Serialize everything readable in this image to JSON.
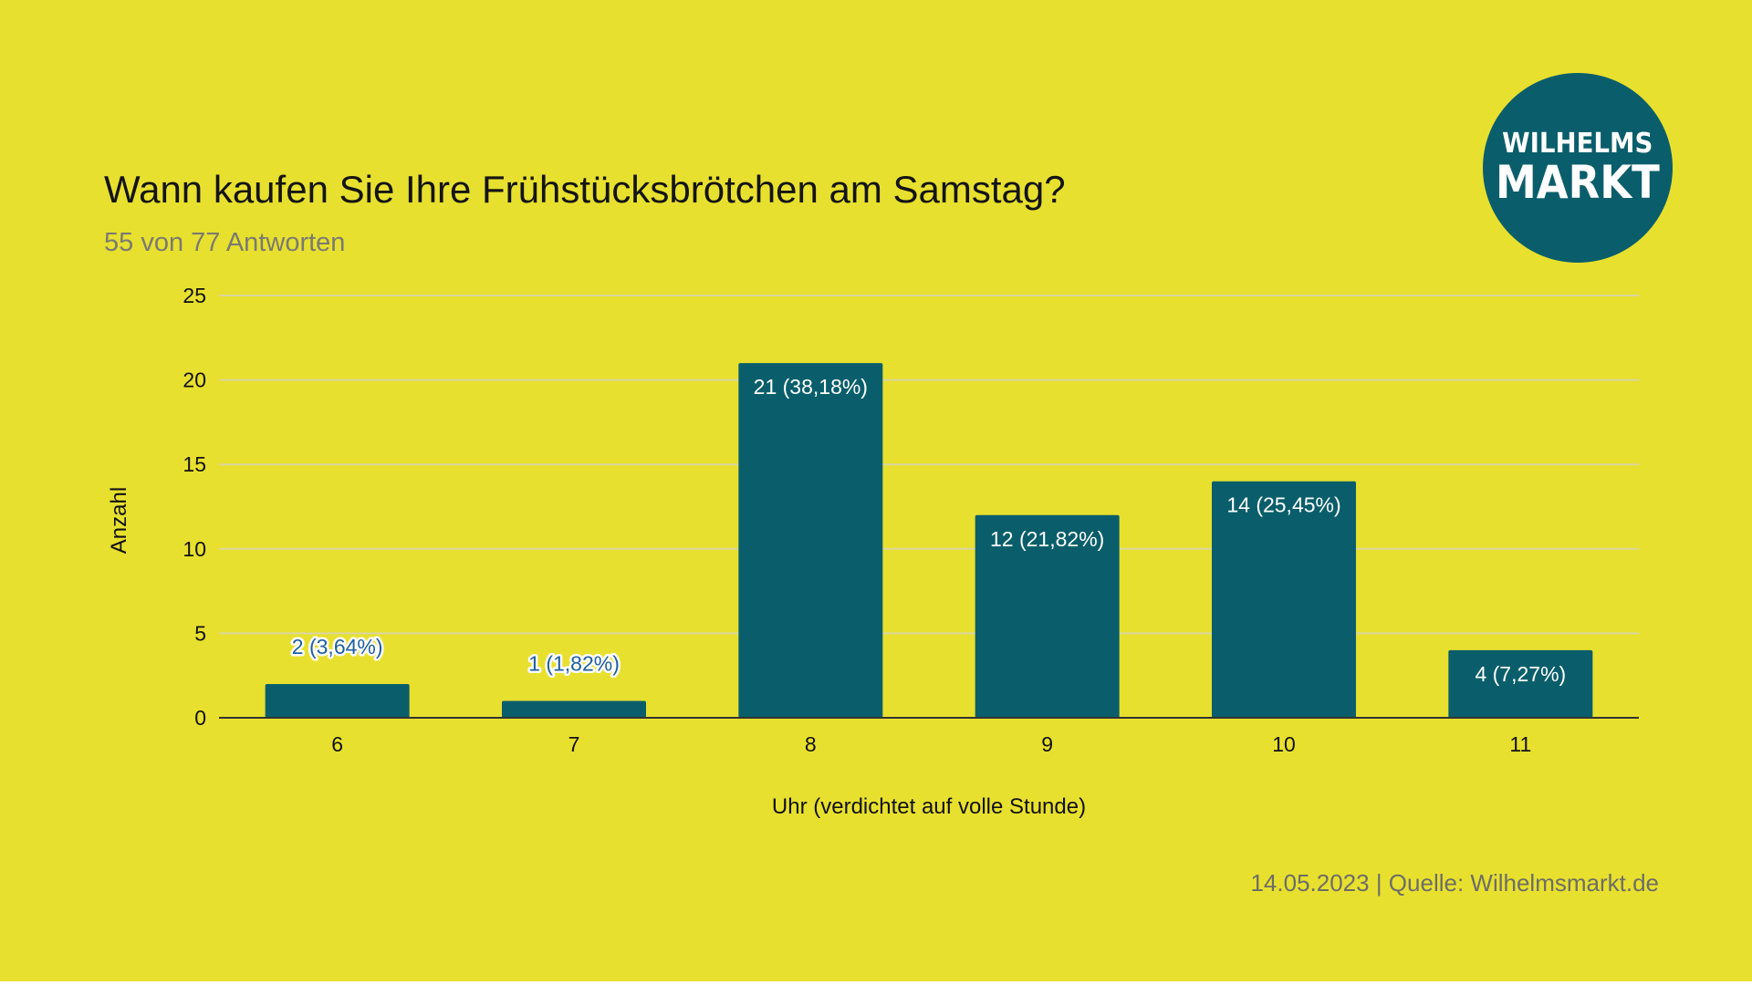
{
  "header": {
    "title": "Wann kaufen Sie Ihre Frühstücksbrötchen am Samstag?",
    "subtitle": "55 von 77 Antworten"
  },
  "logo": {
    "line1": "WILHELMS",
    "line2": "MARKT"
  },
  "footer": {
    "text": "14.05.2023 | Quelle: Wilhelmsmarkt.de"
  },
  "colors": {
    "background": "#e8e02f",
    "bar": "#0a5e6b",
    "label_outside": "#1e5f9e",
    "label_inside": "#ffffff",
    "grid": "#d9d6a0"
  },
  "chart_data": {
    "type": "bar",
    "categories": [
      "6",
      "7",
      "8",
      "9",
      "10",
      "11"
    ],
    "values": [
      2,
      1,
      21,
      12,
      14,
      4
    ],
    "data_labels": [
      "2 (3,64%)",
      "1 (1,82%)",
      "21 (38,18%)",
      "12 (21,82%)",
      "14 (25,45%)",
      "4 (7,27%)"
    ],
    "xlabel": "Uhr (verdichtet auf volle Stunde)",
    "ylabel": "Anzahl",
    "ylim": [
      0,
      25
    ],
    "yticks": [
      0,
      5,
      10,
      15,
      20,
      25
    ],
    "grid": true,
    "legend": "none"
  }
}
